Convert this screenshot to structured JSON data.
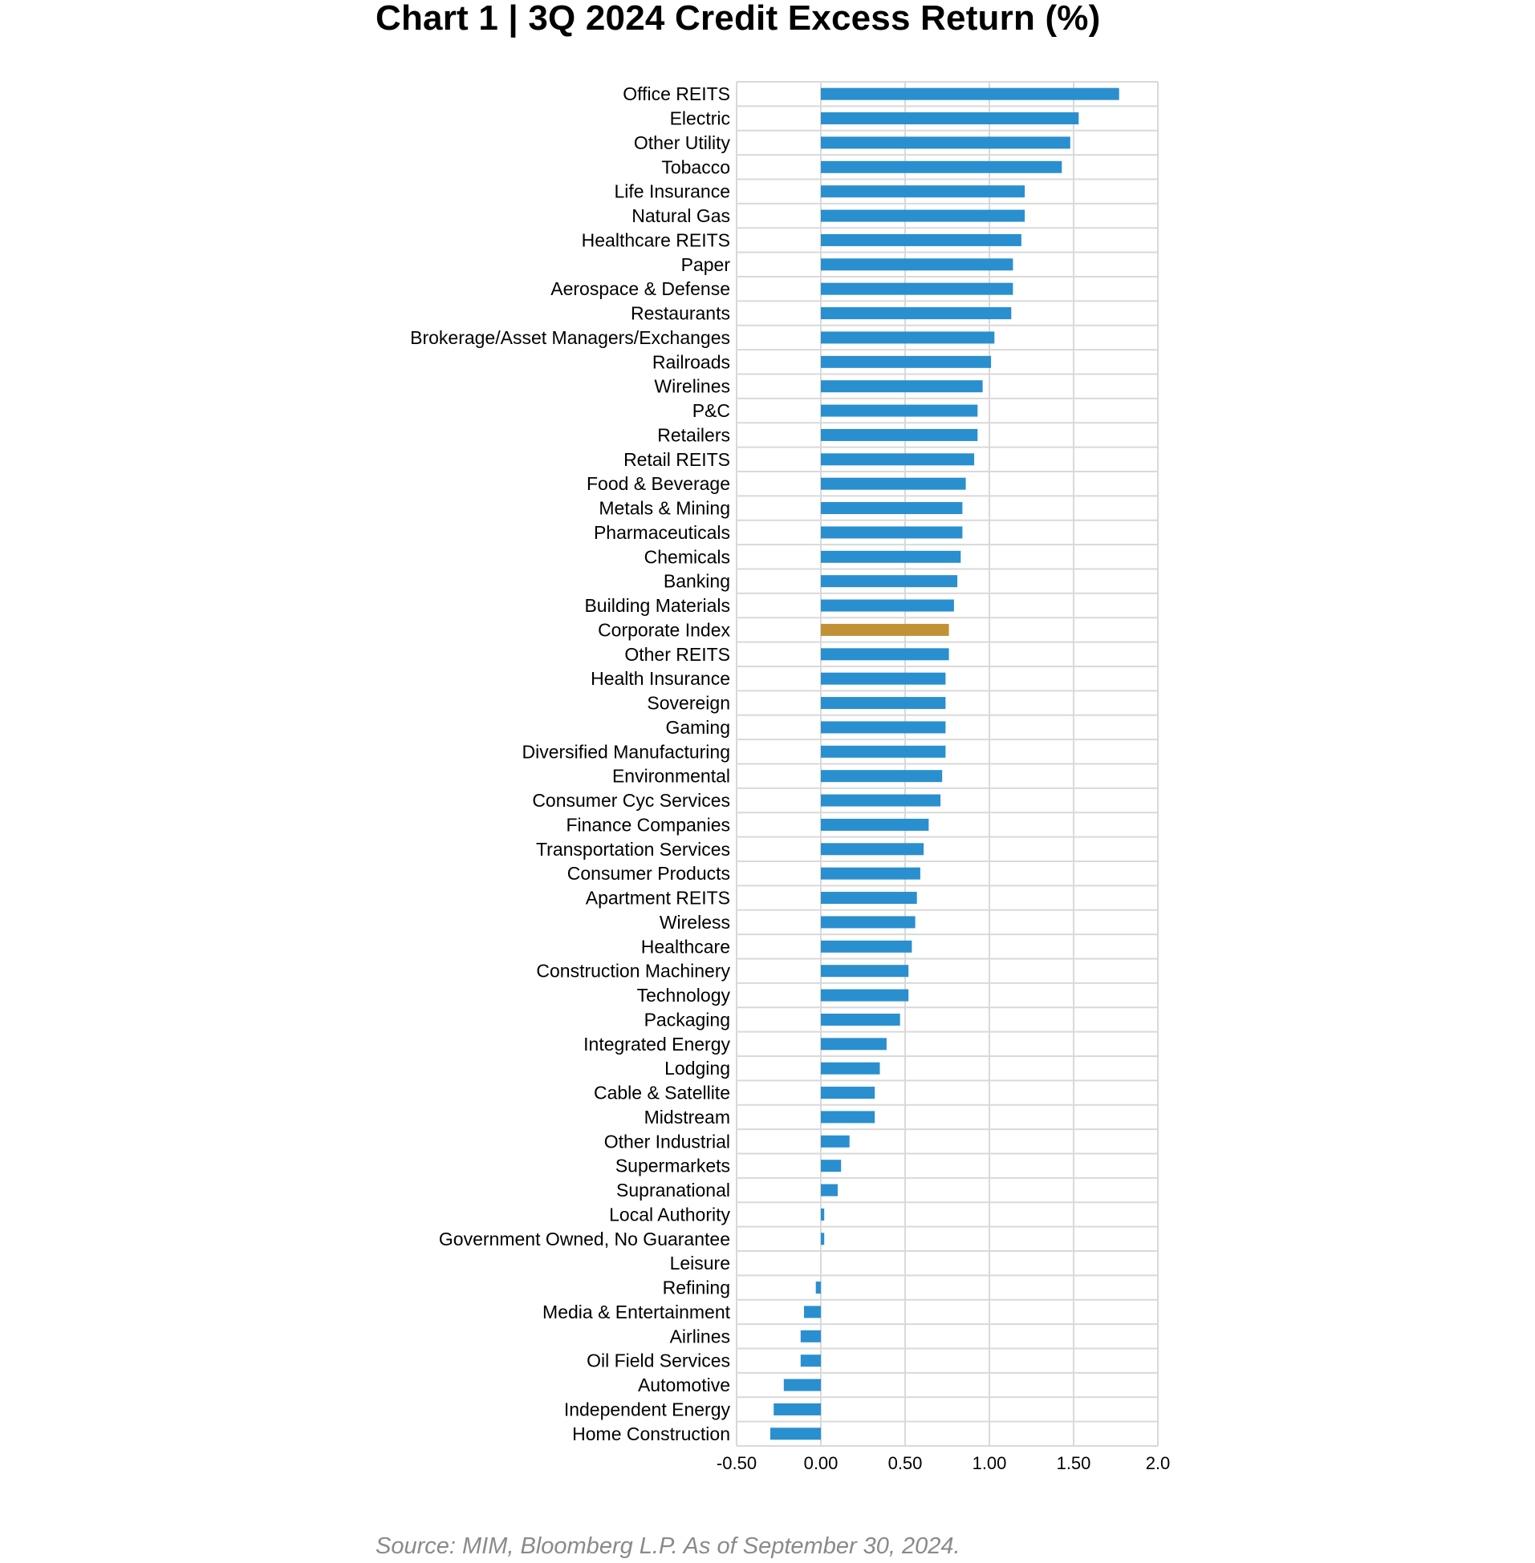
{
  "title": "Chart 1  |  3Q 2024 Credit Excess Return (%)",
  "source": "Source: MIM, Bloomberg L.P.  As of September 30, 2024.",
  "colors": {
    "bar": "#2a8fcf",
    "highlight": "#c09235",
    "grid": "#d9d9d9"
  },
  "chart_data": {
    "type": "bar",
    "orientation": "horizontal",
    "title": "Chart 1  |  3Q 2024 Credit Excess Return (%)",
    "xlim": [
      -0.5,
      2.0
    ],
    "x_ticks": [
      "-0.50",
      "0.00",
      "0.50",
      "1.00",
      "1.50",
      "2.0"
    ],
    "grid": true,
    "highlight_category": "Corporate Index",
    "categories": [
      "Office REITS",
      "Electric",
      "Other Utility",
      "Tobacco",
      "Life Insurance",
      "Natural Gas",
      "Healthcare REITS",
      "Paper",
      "Aerospace & Defense",
      "Restaurants",
      "Brokerage/Asset Managers/Exchanges",
      "Railroads",
      "Wirelines",
      "P&C",
      "Retailers",
      "Retail REITS",
      "Food & Beverage",
      "Metals & Mining",
      "Pharmaceuticals",
      "Chemicals",
      "Banking",
      "Building Materials",
      "Corporate Index",
      "Other REITS",
      "Health Insurance",
      "Sovereign",
      "Gaming",
      "Diversified Manufacturing",
      "Environmental",
      "Consumer Cyc Services",
      "Finance Companies",
      "Transportation Services",
      "Consumer Products",
      "Apartment REITS",
      "Wireless",
      "Healthcare",
      "Construction Machinery",
      "Technology",
      "Packaging",
      "Integrated Energy",
      "Lodging",
      "Cable & Satellite",
      "Midstream",
      "Other Industrial",
      "Supermarkets",
      "Supranational",
      "Local Authority",
      "Government Owned, No Guarantee",
      "Leisure",
      "Refining",
      "Media & Entertainment",
      "Airlines",
      "Oil Field Services",
      "Automotive",
      "Independent Energy",
      "Home Construction"
    ],
    "values": [
      1.77,
      1.53,
      1.48,
      1.43,
      1.21,
      1.21,
      1.19,
      1.14,
      1.14,
      1.13,
      1.03,
      1.01,
      0.96,
      0.93,
      0.93,
      0.91,
      0.86,
      0.84,
      0.84,
      0.83,
      0.81,
      0.79,
      0.76,
      0.76,
      0.74,
      0.74,
      0.74,
      0.74,
      0.72,
      0.71,
      0.64,
      0.61,
      0.59,
      0.57,
      0.56,
      0.54,
      0.52,
      0.52,
      0.47,
      0.39,
      0.35,
      0.32,
      0.32,
      0.17,
      0.12,
      0.1,
      0.02,
      0.02,
      0.0,
      -0.03,
      -0.1,
      -0.12,
      -0.12,
      -0.22,
      -0.28,
      -0.3
    ]
  }
}
